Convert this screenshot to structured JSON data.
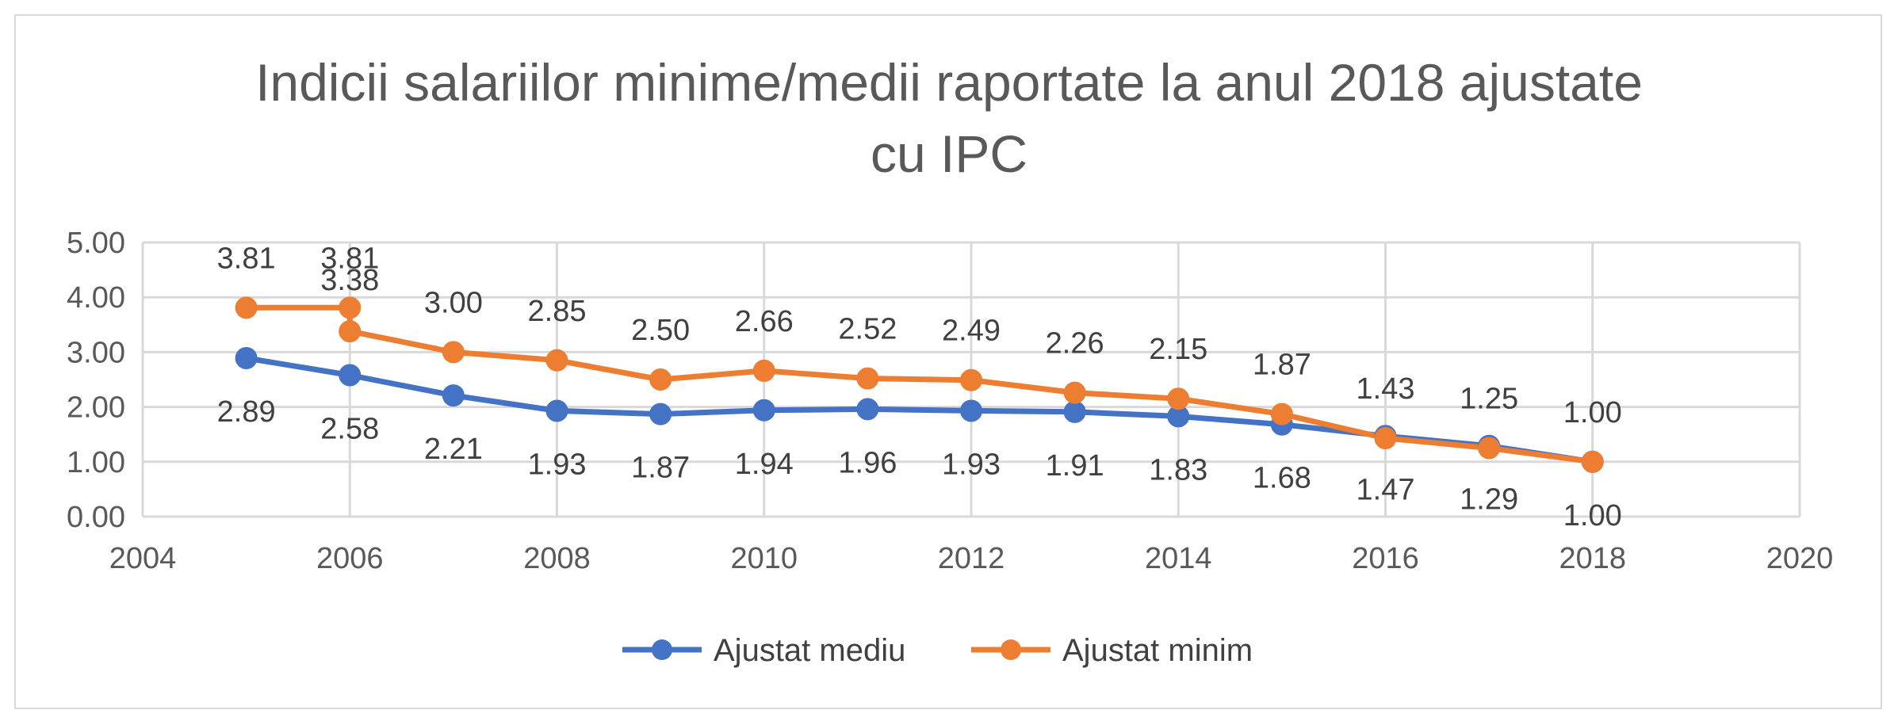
{
  "chart_data": {
    "type": "scatter",
    "title_lines": [
      "Indicii salariilor minime/medii raportate la anul 2018 ajustate",
      "cu IPC"
    ],
    "x_ticks": [
      "2004",
      "2006",
      "2008",
      "2010",
      "2012",
      "2014",
      "2016",
      "2018",
      "2020"
    ],
    "y_ticks": [
      "0.00",
      "1.00",
      "2.00",
      "3.00",
      "4.00",
      "5.00"
    ],
    "xlim": [
      2004,
      2020
    ],
    "ylim": [
      0,
      5
    ],
    "grid": true,
    "legend_position": "bottom",
    "series": [
      {
        "name": "Ajustat mediu",
        "color": "#4472C4",
        "x": [
          2005,
          2006,
          2007,
          2008,
          2009,
          2010,
          2011,
          2012,
          2013,
          2014,
          2015,
          2016,
          2017,
          2018
        ],
        "values": [
          2.89,
          2.58,
          2.21,
          1.93,
          1.87,
          1.94,
          1.96,
          1.93,
          1.91,
          1.83,
          1.68,
          1.47,
          1.29,
          1.0
        ],
        "labels": [
          "2.89",
          "2.58",
          "2.21",
          "1.93",
          "1.87",
          "1.94",
          "1.96",
          "1.93",
          "1.91",
          "1.83",
          "1.68",
          "1.47",
          "1.29",
          "1.00"
        ],
        "label_position": "below"
      },
      {
        "name": "Ajustat minim",
        "color": "#ED7D31",
        "x": [
          2005,
          2006,
          2006,
          2007,
          2008,
          2009,
          2010,
          2011,
          2012,
          2013,
          2014,
          2015,
          2016,
          2017,
          2018
        ],
        "values": [
          3.81,
          3.81,
          3.38,
          3.0,
          2.85,
          2.5,
          2.66,
          2.52,
          2.49,
          2.26,
          2.15,
          1.87,
          1.43,
          1.25,
          1.0
        ],
        "labels": [
          "3.81",
          "3.81",
          "3.38",
          "3.00",
          "2.85",
          "2.50",
          "2.66",
          "2.52",
          "2.49",
          "2.26",
          "2.15",
          "1.87",
          "1.43",
          "1.25",
          "1.00"
        ],
        "label_position": "above"
      }
    ]
  }
}
